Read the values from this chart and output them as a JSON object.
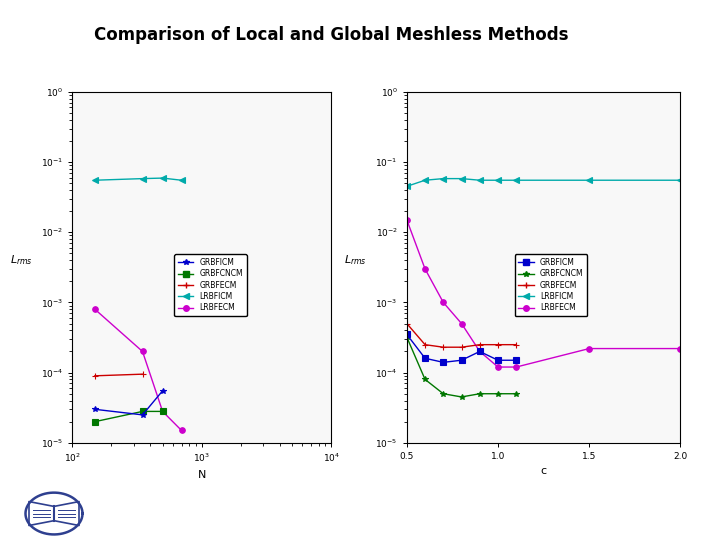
{
  "title": "Comparison of Local and Global Meshless Methods",
  "title_color": "#000000",
  "header_bar_color": "#2e3f8f",
  "bg_color": "#ffffff",
  "plot1": {
    "xlabel": "N",
    "ylabel": "L_rms",
    "xlim": [
      100,
      10000
    ],
    "ylim": [
      1e-05,
      1.0
    ],
    "series": {
      "GRBFICM": {
        "x": [
          150,
          350,
          500
        ],
        "y": [
          3e-05,
          2.5e-05,
          5.5e-05
        ],
        "color": "#0000cc",
        "marker": "*",
        "linestyle": "-"
      },
      "GRBFCNCM": {
        "x": [
          150,
          350,
          500
        ],
        "y": [
          2e-05,
          2.8e-05,
          2.8e-05
        ],
        "color": "#007700",
        "marker": "s",
        "linestyle": "-"
      },
      "GRBFECM": {
        "x": [
          150,
          350
        ],
        "y": [
          9e-05,
          9.5e-05
        ],
        "color": "#cc0000",
        "marker": "+",
        "linestyle": "-"
      },
      "LRBFICM": {
        "x": [
          150,
          350,
          500,
          700
        ],
        "y": [
          0.055,
          0.058,
          0.059,
          0.055
        ],
        "color": "#00aaaa",
        "marker": "<",
        "linestyle": "-"
      },
      "LRBFECM": {
        "x": [
          150,
          350,
          500,
          700
        ],
        "y": [
          0.0008,
          0.0002,
          2.8e-05,
          1.5e-05
        ],
        "color": "#cc00cc",
        "marker": "o",
        "linestyle": "-"
      }
    }
  },
  "plot2": {
    "xlabel": "c",
    "ylabel": "L_rms",
    "xlim": [
      0.5,
      2.0
    ],
    "ylim": [
      1e-05,
      1.0
    ],
    "series": {
      "GRBFICM": {
        "x": [
          0.5,
          0.6,
          0.7,
          0.8,
          0.9,
          1.0,
          1.1
        ],
        "y": [
          0.00035,
          0.00016,
          0.00014,
          0.00015,
          0.0002,
          0.00015,
          0.00015
        ],
        "color": "#0000cc",
        "marker": "s",
        "linestyle": "-"
      },
      "GRBFCNCM": {
        "x": [
          0.5,
          0.6,
          0.7,
          0.8,
          0.9,
          1.0,
          1.1
        ],
        "y": [
          0.00032,
          8e-05,
          5e-05,
          4.5e-05,
          5e-05,
          5e-05,
          5e-05
        ],
        "color": "#007700",
        "marker": "*",
        "linestyle": "-"
      },
      "GRBFECM": {
        "x": [
          0.5,
          0.6,
          0.7,
          0.8,
          0.9,
          1.0,
          1.1
        ],
        "y": [
          0.0005,
          0.00025,
          0.00023,
          0.00023,
          0.00025,
          0.00025,
          0.00025
        ],
        "color": "#cc0000",
        "marker": "+",
        "linestyle": "-"
      },
      "LRBFICM": {
        "x": [
          0.5,
          0.6,
          0.7,
          0.8,
          0.9,
          1.0,
          1.1,
          1.5,
          2.0
        ],
        "y": [
          0.045,
          0.055,
          0.058,
          0.058,
          0.055,
          0.055,
          0.055,
          0.055,
          0.055
        ],
        "color": "#00aaaa",
        "marker": "<",
        "linestyle": "-"
      },
      "LRBFECM": {
        "x": [
          0.5,
          0.6,
          0.7,
          0.8,
          0.9,
          1.0,
          1.1,
          1.5,
          2.0
        ],
        "y": [
          0.015,
          0.003,
          0.001,
          0.0005,
          0.0002,
          0.00012,
          0.00012,
          0.00022,
          0.00022
        ],
        "color": "#cc00cc",
        "marker": "o",
        "linestyle": "-"
      }
    }
  },
  "legend_labels_p1": [
    "GRBFICM",
    "GRBFCNCM",
    "GRBFECM",
    "LRBFICM",
    "LRBFECM"
  ],
  "legend_labels_p2": [
    "GRBFICM",
    "GRBFCNCM",
    "GRBFECM",
    "LRBFICM",
    "LRBFECM"
  ]
}
